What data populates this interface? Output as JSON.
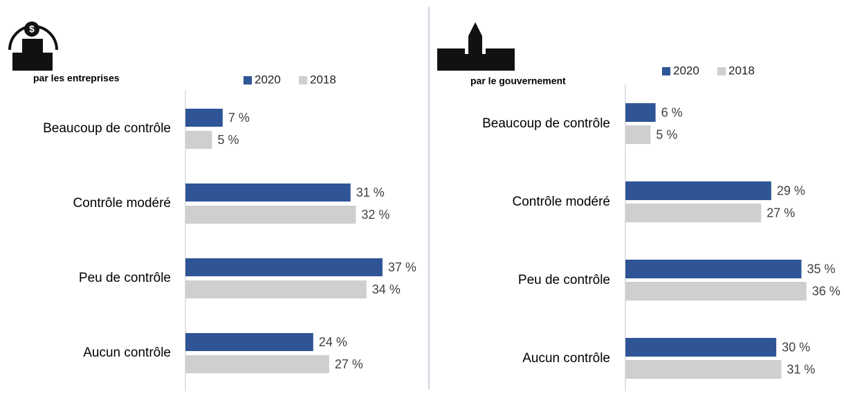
{
  "chart_data": [
    {
      "type": "bar",
      "orientation": "horizontal",
      "subtitle": "par les entreprises",
      "categories": [
        "Beaucoup de contrôle",
        "Contrôle modéré",
        "Peu de contrôle",
        "Aucun contrôle"
      ],
      "series": [
        {
          "name": "2020",
          "color": "#2f5597",
          "values": [
            7,
            31,
            37,
            24
          ],
          "value_labels": [
            "7 %",
            "31 %",
            "37 %",
            "24 %"
          ]
        },
        {
          "name": "2018",
          "color": "#d0cece",
          "values": [
            5,
            32,
            34,
            27
          ],
          "value_labels": [
            "5 %",
            "32 %",
            "34 %",
            "27 %"
          ]
        }
      ],
      "xlim": [
        0,
        40
      ],
      "legend": "top"
    },
    {
      "type": "bar",
      "orientation": "horizontal",
      "subtitle": "par le gouvernement",
      "categories": [
        "Beaucoup de contrôle",
        "Contrôle modéré",
        "Peu de contrôle",
        "Aucun contrôle"
      ],
      "series": [
        {
          "name": "2020",
          "color": "#2f5597",
          "values": [
            6,
            29,
            35,
            30
          ],
          "value_labels": [
            "6 %",
            "29 %",
            "35 %",
            "30 %"
          ]
        },
        {
          "name": "2018",
          "color": "#d0cece",
          "values": [
            5,
            27,
            36,
            31
          ],
          "value_labels": [
            "5 %",
            "27 %",
            "36 %",
            "31 %"
          ]
        }
      ],
      "xlim": [
        0,
        40
      ],
      "legend": "top"
    }
  ]
}
